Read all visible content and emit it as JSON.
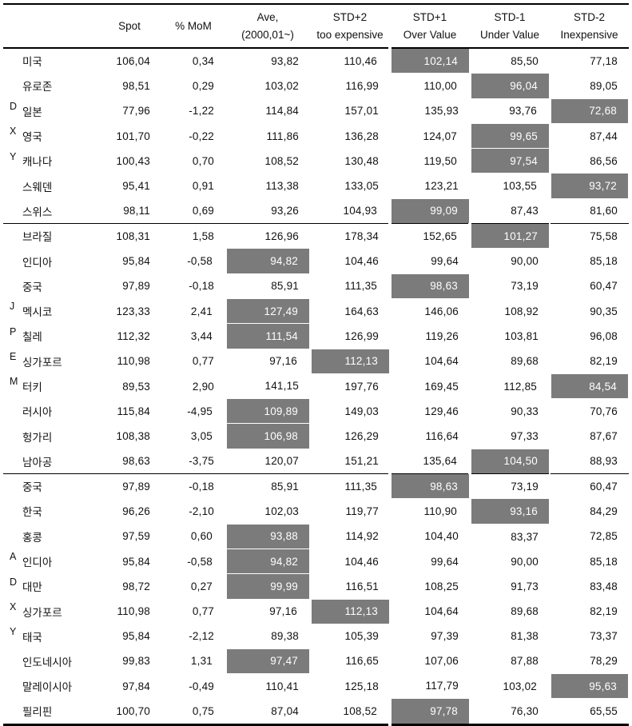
{
  "table": {
    "header": {
      "cols": [
        {
          "l1": "Spot",
          "l2": ""
        },
        {
          "l1": "% MoM",
          "l2": ""
        },
        {
          "l1": "Ave,",
          "l2": "(2000,01~)"
        },
        {
          "l1": "STD+2",
          "l2": "too expensive"
        },
        {
          "l1": "STD+1",
          "l2": "Over Value"
        },
        {
          "l1": "STD-1",
          "l2": "Under Value"
        },
        {
          "l1": "STD-2",
          "l2": "Inexpensive"
        }
      ]
    },
    "groups": [
      {
        "rows": [
          {
            "letter": "",
            "country": "미국",
            "values": [
              "106,04",
              "0,34",
              "93,82",
              "110,46",
              "102,14",
              "85,50",
              "77,18"
            ],
            "highlight": 4
          },
          {
            "letter": "",
            "country": "유로존",
            "values": [
              "98,51",
              "0,29",
              "103,02",
              "116,99",
              "110,00",
              "96,04",
              "89,05"
            ],
            "highlight": 5
          },
          {
            "letter": "D",
            "country": "일본",
            "values": [
              "77,96",
              "-1,22",
              "114,84",
              "157,01",
              "135,93",
              "93,76",
              "72,68"
            ],
            "highlight": 6
          },
          {
            "letter": "X",
            "country": "영국",
            "values": [
              "101,70",
              "-0,22",
              "111,86",
              "136,28",
              "124,07",
              "99,65",
              "87,44"
            ],
            "highlight": 5
          },
          {
            "letter": "Y",
            "country": "캐나다",
            "values": [
              "100,43",
              "0,70",
              "108,52",
              "130,48",
              "119,50",
              "97,54",
              "86,56"
            ],
            "highlight": 5
          },
          {
            "letter": "",
            "country": "스웨덴",
            "values": [
              "95,41",
              "0,91",
              "113,38",
              "133,05",
              "123,21",
              "103,55",
              "93,72"
            ],
            "highlight": 6
          },
          {
            "letter": "",
            "country": "스위스",
            "values": [
              "98,11",
              "0,69",
              "93,26",
              "104,93",
              "99,09",
              "87,43",
              "81,60"
            ],
            "highlight": 4
          }
        ]
      },
      {
        "rows": [
          {
            "letter": "",
            "country": "브라질",
            "values": [
              "108,31",
              "1,58",
              "126,96",
              "178,34",
              "152,65",
              "101,27",
              "75,58"
            ],
            "highlight": 5
          },
          {
            "letter": "",
            "country": "인디아",
            "values": [
              "95,84",
              "-0,58",
              "94,82",
              "104,46",
              "99,64",
              "90,00",
              "85,18"
            ],
            "highlight": 2
          },
          {
            "letter": "",
            "country": "중국",
            "values": [
              "97,89",
              "-0,18",
              "85,91",
              "111,35",
              "98,63",
              "73,19",
              "60,47"
            ],
            "highlight": 4
          },
          {
            "letter": "J",
            "country": "멕시코",
            "values": [
              "123,33",
              "2,41",
              "127,49",
              "164,63",
              "146,06",
              "108,92",
              "90,35"
            ],
            "highlight": 2
          },
          {
            "letter": "P",
            "country": "칠레",
            "values": [
              "112,32",
              "3,44",
              "111,54",
              "126,99",
              "119,26",
              "103,81",
              "96,08"
            ],
            "highlight": 2
          },
          {
            "letter": "E",
            "country": "싱가포르",
            "values": [
              "110,98",
              "0,77",
              "97,16",
              "112,13",
              "104,64",
              "89,68",
              "82,19"
            ],
            "highlight": 3
          },
          {
            "letter": "M",
            "country": "터키",
            "values": [
              "89,53",
              "2,90",
              "141,15",
              "197,76",
              "169,45",
              "112,85",
              "84,54"
            ],
            "highlight": 6
          },
          {
            "letter": "",
            "country": "러시아",
            "values": [
              "115,84",
              "-4,95",
              "109,89",
              "149,03",
              "129,46",
              "90,33",
              "70,76"
            ],
            "highlight": 2
          },
          {
            "letter": "",
            "country": "헝가리",
            "values": [
              "108,38",
              "3,05",
              "106,98",
              "126,29",
              "116,64",
              "97,33",
              "87,67"
            ],
            "highlight": 2
          },
          {
            "letter": "",
            "country": "남아공",
            "values": [
              "98,63",
              "-3,75",
              "120,07",
              "151,21",
              "135,64",
              "104,50",
              "88,93"
            ],
            "highlight": 5
          }
        ]
      },
      {
        "rows": [
          {
            "letter": "",
            "country": "중국",
            "values": [
              "97,89",
              "-0,18",
              "85,91",
              "111,35",
              "98,63",
              "73,19",
              "60,47"
            ],
            "highlight": 4
          },
          {
            "letter": "",
            "country": "한국",
            "values": [
              "96,26",
              "-2,10",
              "102,03",
              "119,77",
              "110,90",
              "93,16",
              "84,29"
            ],
            "highlight": 5
          },
          {
            "letter": "",
            "country": "홍콩",
            "values": [
              "97,59",
              "0,60",
              "93,88",
              "114,92",
              "104,40",
              "83,37",
              "72,85"
            ],
            "highlight": 2
          },
          {
            "letter": "A",
            "country": "인디아",
            "values": [
              "95,84",
              "-0,58",
              "94,82",
              "104,46",
              "99,64",
              "90,00",
              "85,18"
            ],
            "highlight": 2
          },
          {
            "letter": "D",
            "country": "대만",
            "values": [
              "98,72",
              "0,27",
              "99,99",
              "116,51",
              "108,25",
              "91,73",
              "83,48"
            ],
            "highlight": 2
          },
          {
            "letter": "X",
            "country": "싱가포르",
            "values": [
              "110,98",
              "0,77",
              "97,16",
              "112,13",
              "104,64",
              "89,68",
              "82,19"
            ],
            "highlight": 3
          },
          {
            "letter": "Y",
            "country": "태국",
            "values": [
              "95,84",
              "-2,12",
              "89,38",
              "105,39",
              "97,39",
              "81,38",
              "73,37"
            ],
            "highlight": -1
          },
          {
            "letter": "",
            "country": "인도네시아",
            "values": [
              "99,83",
              "1,31",
              "97,47",
              "116,65",
              "107,06",
              "87,88",
              "78,29"
            ],
            "highlight": 2
          },
          {
            "letter": "",
            "country": "말레이시아",
            "values": [
              "97,84",
              "-0,49",
              "110,41",
              "125,18",
              "117,79",
              "103,02",
              "95,63"
            ],
            "highlight": 6
          },
          {
            "letter": "",
            "country": "필리핀",
            "values": [
              "100,70",
              "0,75",
              "87,04",
              "108,52",
              "97,78",
              "76,30",
              "65,55"
            ],
            "highlight": 4
          }
        ]
      }
    ],
    "colors": {
      "highlight_bg": "#7b7b7b",
      "highlight_text": "#ffffff",
      "border": "#000000"
    }
  }
}
